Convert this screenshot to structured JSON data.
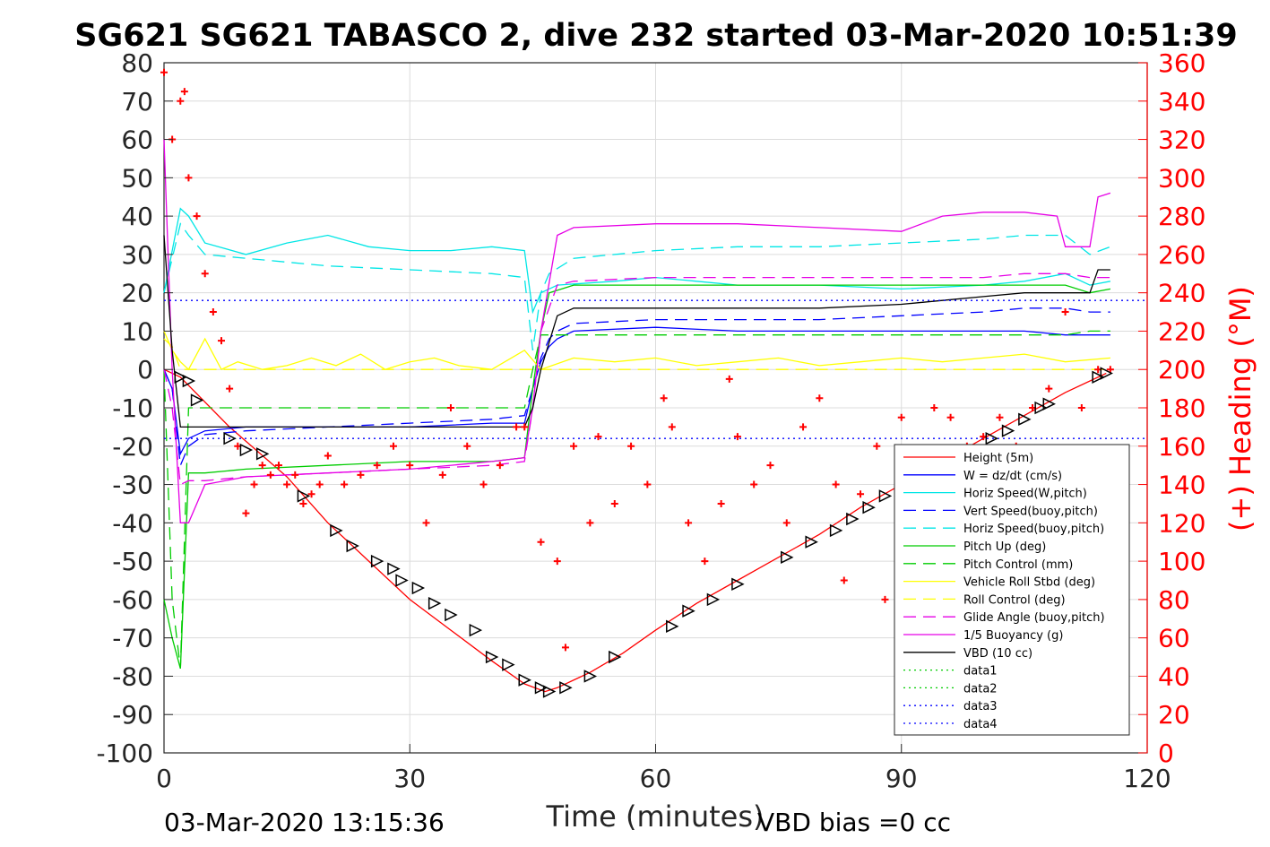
{
  "chart_data": {
    "type": "line",
    "title": "SG621 SG621 TABASCO 2, dive 232 started 03-Mar-2020 10:51:39",
    "xlabel": "Time (minutes)",
    "ylabel": "",
    "y2label": "(+) Heading (°M)",
    "xlim": [
      0,
      120
    ],
    "ylim": [
      -100,
      80
    ],
    "y2lim": [
      0,
      360
    ],
    "xticks": [
      0,
      30,
      60,
      90,
      120
    ],
    "yticks": [
      -100,
      -90,
      -80,
      -70,
      -60,
      -50,
      -40,
      -30,
      -20,
      -10,
      0,
      10,
      20,
      30,
      40,
      50,
      60,
      70,
      80
    ],
    "y2ticks": [
      0,
      20,
      40,
      60,
      80,
      100,
      120,
      140,
      160,
      180,
      200,
      220,
      240,
      260,
      280,
      300,
      320,
      340,
      360
    ],
    "grid": true,
    "legend_position": "bottom-right",
    "series": [
      {
        "name": "Height (5m)",
        "color": "#ff0000",
        "style": "solid",
        "x": [
          0,
          2,
          8,
          15,
          20,
          25,
          30,
          35,
          40,
          44,
          46.5,
          48,
          52,
          56,
          60,
          65,
          70,
          75,
          80,
          85,
          90,
          95,
          100,
          105,
          110,
          115
        ],
        "y": [
          0,
          -2,
          -15,
          -28,
          -40,
          -50,
          -60,
          -68,
          -76,
          -82,
          -84,
          -83,
          -79,
          -74,
          -68,
          -61,
          -55,
          -49,
          -43,
          -36,
          -30,
          -24,
          -18,
          -12,
          -6,
          -1
        ]
      },
      {
        "name": "W = dz/dt (cm/s)",
        "color": "#0000ff",
        "style": "solid",
        "x": [
          0,
          1,
          2,
          3,
          5,
          10,
          20,
          30,
          40,
          44,
          45,
          46,
          47,
          48,
          50,
          60,
          70,
          80,
          90,
          100,
          105,
          110,
          113,
          115.5
        ],
        "y": [
          0,
          -5,
          -22,
          -18,
          -16,
          -15,
          -15,
          -15,
          -14,
          -14,
          -5,
          2,
          6,
          8,
          10,
          11,
          10,
          10,
          10,
          10,
          10,
          9,
          9,
          9
        ]
      },
      {
        "name": "Horiz Speed(W,pitch)",
        "color": "#00e6e6",
        "style": "solid",
        "x": [
          0,
          2,
          3,
          5,
          10,
          15,
          20,
          25,
          30,
          35,
          40,
          44,
          45,
          46,
          48,
          55,
          60,
          65,
          70,
          80,
          90,
          100,
          105,
          110,
          113,
          115.5
        ],
        "y": [
          20,
          42,
          40,
          33,
          30,
          33,
          35,
          32,
          31,
          31,
          32,
          31,
          15,
          20,
          22,
          23,
          24,
          23,
          22,
          22,
          21,
          22,
          23,
          25,
          22,
          23
        ]
      },
      {
        "name": "Vert Speed(buoy,pitch)",
        "color": "#0000ff",
        "style": "dash",
        "x": [
          0,
          1,
          2,
          3,
          5,
          10,
          20,
          30,
          40,
          44,
          45,
          46,
          47,
          48,
          50,
          60,
          70,
          80,
          90,
          100,
          105,
          110,
          113,
          115.5
        ],
        "y": [
          0,
          -5,
          -25,
          -20,
          -17,
          -16,
          -15,
          -14,
          -13,
          -12,
          -5,
          3,
          8,
          10,
          12,
          13,
          13,
          13,
          14,
          15,
          16,
          16,
          15,
          15
        ]
      },
      {
        "name": "Horiz Speed(buoy,pitch)",
        "color": "#00e6e6",
        "style": "dash",
        "x": [
          0,
          2,
          3,
          5,
          10,
          20,
          30,
          40,
          44,
          45,
          46,
          47,
          50,
          60,
          70,
          80,
          90,
          100,
          105,
          110,
          113,
          115.5
        ],
        "y": [
          20,
          38,
          35,
          30,
          29,
          27,
          26,
          25,
          24,
          5,
          20,
          25,
          29,
          31,
          32,
          32,
          33,
          34,
          35,
          35,
          30,
          32
        ]
      },
      {
        "name": "Pitch Up (deg)",
        "color": "#00cc00",
        "style": "solid",
        "x": [
          0,
          1,
          2,
          3,
          5,
          10,
          20,
          30,
          40,
          44,
          45,
          46,
          47,
          50,
          60,
          70,
          80,
          90,
          100,
          105,
          110,
          113,
          115.5
        ],
        "y": [
          -60,
          -70,
          -78,
          -27,
          -27,
          -26,
          -25,
          -24,
          -24,
          -23,
          -5,
          10,
          20,
          22,
          22,
          22,
          22,
          22,
          22,
          22,
          22,
          20,
          21
        ]
      },
      {
        "name": "Pitch Control (mm)",
        "color": "#00cc00",
        "style": "dash",
        "x": [
          0,
          1,
          2,
          3,
          5,
          10,
          20,
          30,
          40,
          44,
          45,
          46,
          50,
          60,
          70,
          80,
          90,
          100,
          105,
          110,
          113,
          115.5
        ],
        "y": [
          0,
          -60,
          -78,
          -10,
          -10,
          -10,
          -10,
          -10,
          -10,
          -10,
          0,
          9,
          9,
          9,
          9,
          9,
          9,
          9,
          9,
          9,
          10,
          10
        ]
      },
      {
        "name": "Vehicle Roll Stbd (deg)",
        "color": "#ffff00",
        "style": "solid",
        "x": [
          0,
          1,
          2,
          3,
          5,
          7,
          9,
          12,
          15,
          18,
          21,
          24,
          27,
          30,
          33,
          36,
          40,
          44,
          46,
          50,
          55,
          60,
          65,
          70,
          75,
          80,
          85,
          90,
          95,
          100,
          105,
          110,
          115.5
        ],
        "y": [
          10,
          5,
          2,
          0,
          8,
          0,
          2,
          0,
          1,
          3,
          1,
          4,
          0,
          2,
          3,
          1,
          0,
          5,
          0,
          3,
          2,
          3,
          1,
          2,
          3,
          1,
          2,
          3,
          2,
          3,
          4,
          2,
          3
        ]
      },
      {
        "name": "Roll Control (deg)",
        "color": "#ffff00",
        "style": "dash",
        "x": [
          0,
          1,
          2,
          3,
          5,
          10,
          20,
          30,
          40,
          44,
          46,
          50,
          60,
          70,
          80,
          90,
          100,
          110,
          115.5
        ],
        "y": [
          8,
          6,
          0,
          0,
          0,
          0,
          0,
          0,
          0,
          0,
          0,
          0,
          0,
          0,
          0,
          0,
          0,
          0,
          0
        ]
      },
      {
        "name": "Glide Angle (buoy,pitch)",
        "color": "#e600e6",
        "style": "dash",
        "x": [
          0,
          1,
          2,
          3,
          5,
          10,
          20,
          30,
          40,
          44,
          45,
          46,
          48,
          50,
          60,
          70,
          80,
          90,
          100,
          105,
          110,
          113,
          115.5
        ],
        "y": [
          0,
          -10,
          -30,
          -29,
          -29,
          -28,
          -27,
          -26,
          -25,
          -24,
          -10,
          10,
          22,
          23,
          24,
          24,
          24,
          24,
          24,
          25,
          25,
          24,
          24
        ]
      },
      {
        "name": "1/5 Buoyancy (g)",
        "color": "#e600e6",
        "style": "solid",
        "x": [
          0,
          1,
          2,
          3,
          4,
          5,
          10,
          20,
          30,
          40,
          44,
          45,
          46,
          48,
          50,
          60,
          70,
          80,
          90,
          95,
          100,
          105,
          109,
          110,
          113,
          114,
          115.5
        ],
        "y": [
          60,
          0,
          -40,
          -40,
          -35,
          -30,
          -28,
          -27,
          -26,
          -24,
          -23,
          -10,
          10,
          35,
          37,
          38,
          38,
          37,
          36,
          40,
          41,
          41,
          40,
          32,
          32,
          45,
          46
        ]
      },
      {
        "name": "VBD (10 cc)",
        "color": "#000000",
        "style": "solid",
        "x": [
          0,
          1,
          2,
          3,
          10,
          20,
          30,
          40,
          44,
          45,
          46,
          48,
          50,
          60,
          70,
          80,
          90,
          95,
          100,
          105,
          110,
          113,
          114,
          115.5
        ],
        "y": [
          35,
          5,
          -15,
          -15,
          -15,
          -15,
          -15,
          -15,
          -15,
          -10,
          0,
          14,
          16,
          16,
          16,
          16,
          17,
          18,
          19,
          20,
          20,
          20,
          26,
          26
        ]
      },
      {
        "name": "data1",
        "color": "#00cc00",
        "style": "dot",
        "x": [],
        "y": []
      },
      {
        "name": "data2",
        "color": "#00cc00",
        "style": "dot",
        "x": [],
        "y": []
      },
      {
        "name": "data3",
        "color": "#0000ff",
        "style": "dot",
        "x": [
          0,
          120
        ],
        "y": [
          18,
          18
        ]
      },
      {
        "name": "data4",
        "color": "#0000ff",
        "style": "dot",
        "x": [
          0,
          120
        ],
        "y": [
          -18,
          -18
        ]
      }
    ],
    "heading_series": {
      "color": "#ff0000",
      "marker": "+",
      "axis": "right",
      "x": [
        0,
        1,
        2,
        2.5,
        3,
        4,
        5,
        6,
        7,
        8,
        9,
        10,
        11,
        12,
        13,
        14,
        15,
        16,
        17,
        18,
        19,
        20,
        22,
        24,
        26,
        28,
        30,
        32,
        34,
        35,
        37,
        39,
        41,
        43,
        44,
        46,
        48,
        49,
        50,
        52,
        53,
        55,
        57,
        59,
        61,
        62,
        64,
        66,
        68,
        69,
        70,
        72,
        74,
        76,
        78,
        80,
        82,
        83,
        85,
        87,
        88,
        90,
        92,
        94,
        96,
        98,
        100,
        102,
        104,
        106,
        108,
        110,
        112,
        114,
        115.5
      ],
      "y": [
        355,
        320,
        340,
        345,
        300,
        280,
        250,
        230,
        215,
        190,
        160,
        125,
        140,
        150,
        145,
        150,
        140,
        145,
        130,
        135,
        140,
        155,
        140,
        145,
        150,
        160,
        150,
        120,
        145,
        180,
        160,
        140,
        150,
        170,
        170,
        110,
        100,
        55,
        160,
        120,
        165,
        130,
        160,
        140,
        185,
        170,
        120,
        100,
        130,
        195,
        165,
        140,
        150,
        120,
        170,
        185,
        140,
        90,
        135,
        160,
        80,
        175,
        150,
        180,
        175,
        160,
        165,
        175,
        160,
        180,
        190,
        230,
        180,
        200,
        200
      ]
    },
    "markers": {
      "style": "triangle",
      "color": "#000000",
      "x": [
        2,
        3,
        4,
        8,
        10,
        12,
        17,
        21,
        23,
        26,
        28,
        29,
        31,
        33,
        35,
        38,
        40,
        42,
        44,
        46,
        47,
        49,
        52,
        55,
        62,
        64,
        67,
        70,
        76,
        79,
        82,
        84,
        86,
        88,
        101,
        103,
        105,
        107,
        108,
        114,
        115
      ],
      "y": [
        -2,
        -3,
        -8,
        -18,
        -21,
        -22,
        -33,
        -42,
        -46,
        -50,
        -52,
        -55,
        -57,
        -61,
        -64,
        -68,
        -75,
        -77,
        -81,
        -83,
        -84,
        -83,
        -80,
        -75,
        -67,
        -63,
        -60,
        -56,
        -49,
        -45,
        -42,
        -39,
        -36,
        -33,
        -18,
        -16,
        -13,
        -10,
        -9,
        -2,
        -1
      ]
    }
  },
  "footer": {
    "timestamp": "03-Mar-2020 13:15:36",
    "vbd_bias": "VBD bias =0 cc"
  }
}
